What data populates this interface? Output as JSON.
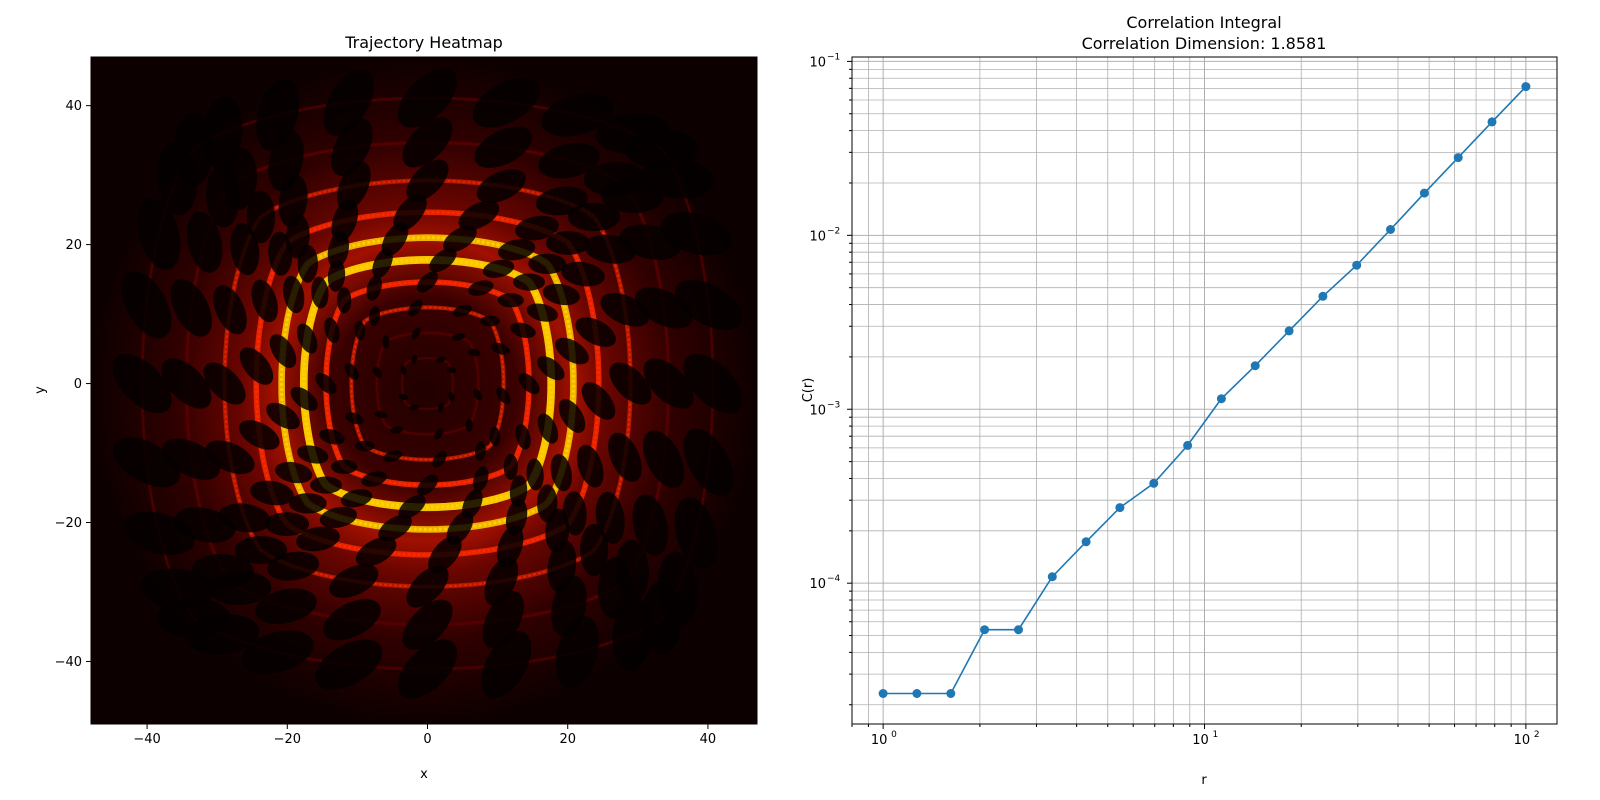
{
  "chart_data": [
    {
      "type": "heatmap",
      "title": "Trajectory Heatmap",
      "xlabel": "x",
      "ylabel": "y",
      "xlim": [
        -48,
        47
      ],
      "ylim": [
        -49,
        47
      ],
      "xticks": [
        -40,
        -20,
        0,
        20,
        40
      ],
      "yticks": [
        -40,
        -20,
        0,
        20,
        40
      ],
      "xtick_labels": [
        "−40",
        "−20",
        "0",
        "20",
        "40"
      ],
      "ytick_labels": [
        "−40",
        "−20",
        "0",
        "20",
        "40"
      ],
      "colormap": "hot",
      "colors": {
        "background": "#0d0000",
        "low": "#5a0000",
        "mid": "#ff2a00",
        "high": "#ffd000"
      },
      "grid": false
    },
    {
      "type": "line",
      "title": "Correlation Integral",
      "subtitle": "Correlation Dimension: 1.8581",
      "xlabel": "r",
      "ylabel": "C(r)",
      "xscale": "log",
      "yscale": "log",
      "xlim": [
        0.8,
        125
      ],
      "ylim": [
        1.55e-05,
        0.106
      ],
      "xtick_labels": [
        {
          "base": "10",
          "exp": "0",
          "value": 1
        },
        {
          "base": "10",
          "exp": "1",
          "value": 10
        },
        {
          "base": "10",
          "exp": "2",
          "value": 100
        }
      ],
      "ytick_labels": [
        {
          "base": "10",
          "exp": "−4",
          "value": 0.0001
        },
        {
          "base": "10",
          "exp": "−3",
          "value": 0.001
        },
        {
          "base": "10",
          "exp": "−2",
          "value": 0.01
        },
        {
          "base": "10",
          "exp": "−1",
          "value": 0.1
        }
      ],
      "grid": true,
      "color": "#1f77b4",
      "series": [
        {
          "x": [
            1.0,
            1.274,
            1.624,
            2.069,
            2.637,
            3.36,
            4.281,
            5.456,
            6.952,
            8.859,
            11.288,
            14.384,
            18.33,
            23.357,
            29.764,
            37.927,
            48.329,
            61.585,
            78.476,
            100.0
          ],
          "y": [
            2.32e-05,
            2.32e-05,
            2.32e-05,
            5.4e-05,
            5.4e-05,
            0.000109,
            0.000173,
            0.000272,
            0.000375,
            0.00062,
            0.00115,
            0.00178,
            0.00282,
            0.00446,
            0.00673,
            0.0108,
            0.0175,
            0.028,
            0.0449,
            0.0716
          ]
        }
      ]
    }
  ]
}
